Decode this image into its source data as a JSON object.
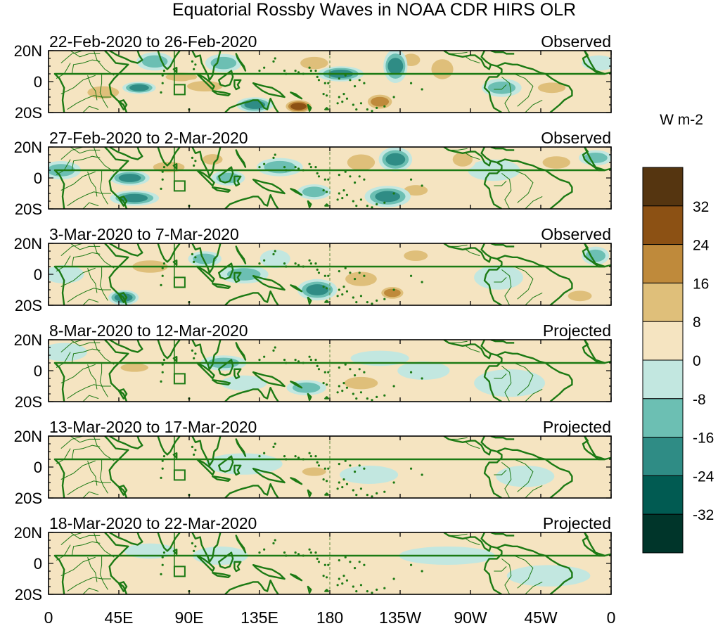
{
  "chart_data": {
    "type": "heatmap",
    "title": "Equatorial Rossby Waves in NOAA CDR HIRS OLR",
    "units": "W m-2",
    "x_tick_labels": [
      "0",
      "45E",
      "90E",
      "135E",
      "180",
      "135W",
      "90W",
      "45W",
      "0"
    ],
    "y_tick_labels": [
      "20N",
      "0",
      "20S"
    ],
    "panels": [
      {
        "date_range": "22-Feb-2020 to 26-Feb-2020",
        "status": "Observed",
        "anomalies": [
          {
            "lon": 35,
            "lat": -7,
            "rx": 12,
            "ry": 5,
            "value": 12
          },
          {
            "lon": 58,
            "lat": -4,
            "rx": 8,
            "ry": 3,
            "value": -24
          },
          {
            "lon": 68,
            "lat": 13,
            "rx": 9,
            "ry": 5,
            "value": -16
          },
          {
            "lon": 85,
            "lat": 3,
            "rx": 12,
            "ry": 3,
            "value": 12
          },
          {
            "lon": 100,
            "lat": -3,
            "rx": 14,
            "ry": 4,
            "value": 16
          },
          {
            "lon": 112,
            "lat": 12,
            "rx": 9,
            "ry": 5,
            "value": -16
          },
          {
            "lon": 132,
            "lat": -15,
            "rx": 9,
            "ry": 4,
            "value": -24
          },
          {
            "lon": 160,
            "lat": -16,
            "rx": 7,
            "ry": 4,
            "value": 32
          },
          {
            "lon": 158,
            "lat": 4,
            "rx": 9,
            "ry": 4,
            "value": 8
          },
          {
            "lon": 170,
            "lat": 12,
            "rx": 10,
            "ry": 5,
            "value": 16
          },
          {
            "lon": 187,
            "lat": 5,
            "rx": 12,
            "ry": 4,
            "value": -24
          },
          {
            "lon": 212,
            "lat": -13,
            "rx": 7,
            "ry": 5,
            "value": 24
          },
          {
            "lon": 222,
            "lat": 10,
            "rx": 5,
            "ry": 10,
            "value": -24
          },
          {
            "lon": 232,
            "lat": 14,
            "rx": 5,
            "ry": 5,
            "value": 16
          },
          {
            "lon": 252,
            "lat": 8,
            "rx": 7,
            "ry": 9,
            "value": 16
          },
          {
            "lon": 290,
            "lat": -4,
            "rx": 10,
            "ry": 5,
            "value": -16
          },
          {
            "lon": 268,
            "lat": 13,
            "rx": 7,
            "ry": 4,
            "value": 8
          },
          {
            "lon": 322,
            "lat": -4,
            "rx": 10,
            "ry": 4,
            "value": 12
          },
          {
            "lon": 352,
            "lat": 12,
            "rx": 8,
            "ry": 4,
            "value": -8
          }
        ]
      },
      {
        "date_range": "27-Feb-2020 to 2-Mar-2020",
        "status": "Observed",
        "anomalies": [
          {
            "lon": 8,
            "lat": 5,
            "rx": 10,
            "ry": 5,
            "value": -16
          },
          {
            "lon": 52,
            "lat": 0,
            "rx": 10,
            "ry": 4,
            "value": -24
          },
          {
            "lon": 55,
            "lat": -13,
            "rx": 13,
            "ry": 4,
            "value": -24
          },
          {
            "lon": 77,
            "lat": 7,
            "rx": 12,
            "ry": 4,
            "value": 16
          },
          {
            "lon": 105,
            "lat": 12,
            "rx": 6,
            "ry": 4,
            "value": 12
          },
          {
            "lon": 115,
            "lat": 0,
            "rx": 8,
            "ry": 4,
            "value": -16
          },
          {
            "lon": 148,
            "lat": 7,
            "rx": 12,
            "ry": 5,
            "value": -16
          },
          {
            "lon": 170,
            "lat": -9,
            "rx": 8,
            "ry": 4,
            "value": -16
          },
          {
            "lon": 200,
            "lat": 10,
            "rx": 10,
            "ry": 7,
            "value": 12
          },
          {
            "lon": 222,
            "lat": 12,
            "rx": 8,
            "ry": 7,
            "value": -24
          },
          {
            "lon": 217,
            "lat": -12,
            "rx": 12,
            "ry": 6,
            "value": -24
          },
          {
            "lon": 235,
            "lat": -8,
            "rx": 8,
            "ry": 4,
            "value": 16
          },
          {
            "lon": 265,
            "lat": 12,
            "rx": 6,
            "ry": 6,
            "value": 16
          },
          {
            "lon": 285,
            "lat": 5,
            "rx": 14,
            "ry": 6,
            "value": -8
          },
          {
            "lon": 325,
            "lat": 10,
            "rx": 10,
            "ry": 5,
            "value": 12
          },
          {
            "lon": 350,
            "lat": 13,
            "rx": 8,
            "ry": 4,
            "value": -16
          }
        ]
      },
      {
        "date_range": "3-Mar-2020 to 7-Mar-2020",
        "status": "Observed",
        "anomalies": [
          {
            "lon": 10,
            "lat": 0,
            "rx": 10,
            "ry": 5,
            "value": -8
          },
          {
            "lon": 48,
            "lat": -15,
            "rx": 7,
            "ry": 4,
            "value": -24
          },
          {
            "lon": 65,
            "lat": 5,
            "rx": 14,
            "ry": 5,
            "value": 12
          },
          {
            "lon": 100,
            "lat": 10,
            "rx": 8,
            "ry": 4,
            "value": -16
          },
          {
            "lon": 125,
            "lat": 0,
            "rx": 13,
            "ry": 5,
            "value": -16
          },
          {
            "lon": 145,
            "lat": 10,
            "rx": 7,
            "ry": 5,
            "value": -8
          },
          {
            "lon": 172,
            "lat": -10,
            "rx": 10,
            "ry": 6,
            "value": -24
          },
          {
            "lon": 200,
            "lat": -3,
            "rx": 12,
            "ry": 6,
            "value": 12
          },
          {
            "lon": 220,
            "lat": -12,
            "rx": 6,
            "ry": 4,
            "value": 24
          },
          {
            "lon": 235,
            "lat": 12,
            "rx": 8,
            "ry": 4,
            "value": 12
          },
          {
            "lon": 288,
            "lat": -2,
            "rx": 13,
            "ry": 7,
            "value": -8
          },
          {
            "lon": 350,
            "lat": 12,
            "rx": 6,
            "ry": 5,
            "value": -16
          },
          {
            "lon": 340,
            "lat": -14,
            "rx": 8,
            "ry": 4,
            "value": 16
          }
        ]
      },
      {
        "date_range": "8-Mar-2020 to 12-Mar-2020",
        "status": "Projected",
        "anomalies": [
          {
            "lon": 10,
            "lat": 12,
            "rx": 12,
            "ry": 5,
            "value": -8
          },
          {
            "lon": 55,
            "lat": 2,
            "rx": 10,
            "ry": 3,
            "value": 12
          },
          {
            "lon": 112,
            "lat": 5,
            "rx": 12,
            "ry": 4,
            "value": -16
          },
          {
            "lon": 125,
            "lat": -8,
            "rx": 12,
            "ry": 4,
            "value": -8
          },
          {
            "lon": 165,
            "lat": -11,
            "rx": 10,
            "ry": 4,
            "value": -16
          },
          {
            "lon": 200,
            "lat": -8,
            "rx": 13,
            "ry": 5,
            "value": 12
          },
          {
            "lon": 212,
            "lat": 8,
            "rx": 16,
            "ry": 4,
            "value": -8
          },
          {
            "lon": 240,
            "lat": 0,
            "rx": 14,
            "ry": 5,
            "value": -8
          },
          {
            "lon": 295,
            "lat": -8,
            "rx": 20,
            "ry": 8,
            "value": -8
          },
          {
            "lon": 340,
            "lat": 6,
            "rx": 12,
            "ry": 5,
            "value": 8
          }
        ]
      },
      {
        "date_range": "13-Mar-2020 to 17-Mar-2020",
        "status": "Projected",
        "anomalies": [
          {
            "lon": 35,
            "lat": 10,
            "rx": 14,
            "ry": 5,
            "value": 8
          },
          {
            "lon": 70,
            "lat": -5,
            "rx": 20,
            "ry": 5,
            "value": 8
          },
          {
            "lon": 125,
            "lat": 2,
            "rx": 22,
            "ry": 6,
            "value": -8
          },
          {
            "lon": 170,
            "lat": -3,
            "rx": 8,
            "ry": 3,
            "value": 12
          },
          {
            "lon": 205,
            "lat": -5,
            "rx": 16,
            "ry": 5,
            "value": -8
          },
          {
            "lon": 260,
            "lat": 3,
            "rx": 30,
            "ry": 4,
            "value": 8
          },
          {
            "lon": 305,
            "lat": -6,
            "rx": 16,
            "ry": 6,
            "value": -8
          }
        ]
      },
      {
        "date_range": "18-Mar-2020 to 22-Mar-2020",
        "status": "Projected",
        "anomalies": [
          {
            "lon": 25,
            "lat": -6,
            "rx": 16,
            "ry": 5,
            "value": 8
          },
          {
            "lon": 65,
            "lat": 8,
            "rx": 14,
            "ry": 4,
            "value": -8
          },
          {
            "lon": 110,
            "lat": 5,
            "rx": 15,
            "ry": 5,
            "value": -8
          },
          {
            "lon": 150,
            "lat": -5,
            "rx": 18,
            "ry": 5,
            "value": 8
          },
          {
            "lon": 200,
            "lat": -3,
            "rx": 14,
            "ry": 6,
            "value": 8
          },
          {
            "lon": 255,
            "lat": 5,
            "rx": 28,
            "ry": 5,
            "value": -8
          },
          {
            "lon": 320,
            "lat": -8,
            "rx": 24,
            "ry": 6,
            "value": -8
          }
        ]
      }
    ],
    "colorbar": {
      "bins": [
        -40,
        -32,
        -24,
        -16,
        -8,
        0,
        8,
        16,
        24,
        32,
        40
      ],
      "labels": [
        "32",
        "24",
        "16",
        "8",
        "0",
        "-8",
        "-16",
        "-24",
        "-32"
      ],
      "colors": [
        "#00352a",
        "#015b52",
        "#2f8c85",
        "#6cbfb3",
        "#c2e7e0",
        "#f5e4c1",
        "#dfbf7a",
        "#bf8a3b",
        "#8c5114",
        "#553510"
      ]
    },
    "map_background": "#f5e4c1",
    "coast_color": "#1c7a14",
    "xlim": [
      0,
      360
    ],
    "ylim": [
      -20,
      20
    ]
  }
}
